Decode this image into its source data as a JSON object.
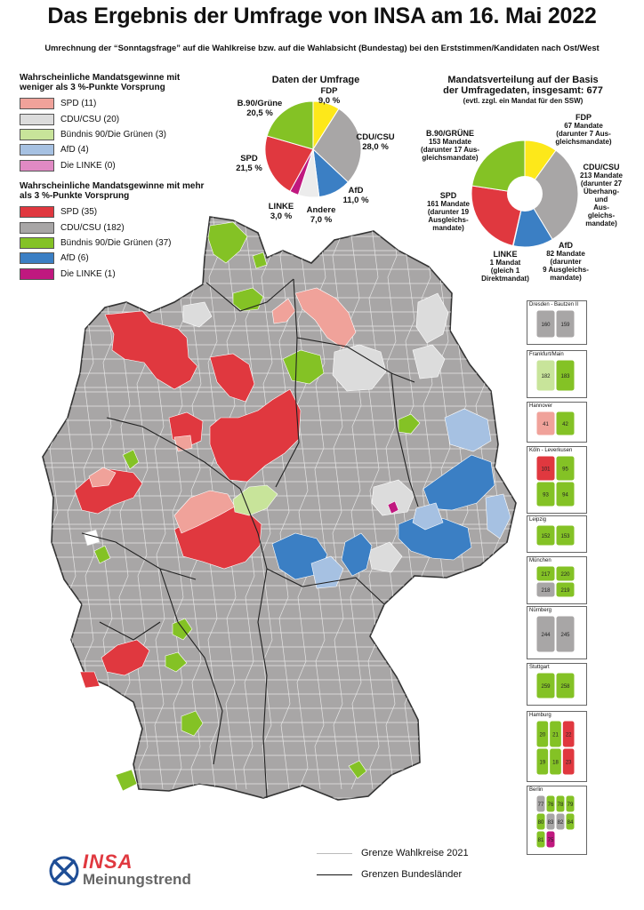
{
  "title": "Das Ergebnis der Umfrage von INSA am 16. Mai 2022",
  "subtitle": "Umrechnung der “Sonntagsfrage” auf die Wahlkreise bzw. auf die Wahlabsicht (Bundestag) bei den Erststimmen/Kandidaten nach Ost/West",
  "colors": {
    "spd": "#e0383f",
    "spd_light": "#f0a29a",
    "cdu": "#a8a6a6",
    "cdu_light": "#dcdcdc",
    "gruene": "#84c225",
    "gruene_light": "#c8e49a",
    "afd": "#3b7fc4",
    "afd_light": "#a6c1e2",
    "linke": "#c0187f",
    "linke_light": "#e08ac4",
    "fdp": "#fde81a",
    "andere": "#ececec",
    "white": "#ffffff"
  },
  "legend_weak": {
    "heading": "Wahrscheinliche Mandatsgewinne mit weniger als 3 %-Punkte Vorsprung",
    "items": [
      {
        "label": "SPD (11)",
        "color": "#f0a29a"
      },
      {
        "label": "CDU/CSU (20)",
        "color": "#dcdcdc"
      },
      {
        "label": "Bündnis 90/Die Grünen (3)",
        "color": "#c8e49a"
      },
      {
        "label": "AfD (4)",
        "color": "#a6c1e2"
      },
      {
        "label": "Die LINKE (0)",
        "color": "#e08ac4"
      }
    ]
  },
  "legend_strong": {
    "heading": "Wahrscheinliche Mandatsgewinne mit mehr als 3 %-Punkte Vorsprung",
    "items": [
      {
        "label": "SPD (35)",
        "color": "#e0383f"
      },
      {
        "label": "CDU/CSU (182)",
        "color": "#a8a6a6"
      },
      {
        "label": "Bündnis 90/Die Grünen (37)",
        "color": "#84c225"
      },
      {
        "label": "AfD (6)",
        "color": "#3b7fc4"
      },
      {
        "label": "Die LINKE (1)",
        "color": "#c0187f"
      }
    ]
  },
  "chart_data": [
    {
      "type": "pie",
      "title": "Daten der Umfrage",
      "categories": [
        "FDP",
        "CDU/CSU",
        "AfD",
        "Andere",
        "LINKE",
        "SPD",
        "B.90/Grüne"
      ],
      "values": [
        9.0,
        28.0,
        11.0,
        7.0,
        3.0,
        21.5,
        20.5
      ],
      "labels": {
        "fdp": [
          "FDP",
          "9,0 %"
        ],
        "cdu": [
          "CDU/CSU",
          "28,0 %"
        ],
        "afd": [
          "AfD",
          "11,0 %"
        ],
        "andere": [
          "Andere",
          "7,0 %"
        ],
        "linke": [
          "LINKE",
          "3,0 %"
        ],
        "spd": [
          "SPD",
          "21,5 %"
        ],
        "gruene": [
          "B.90/Grüne",
          "20,5 %"
        ]
      }
    },
    {
      "type": "pie",
      "title": "Mandatsverteilung auf der Basis der Umfragedaten, insgesamt: 677",
      "title_lines": [
        "Mandatsverteilung auf der Basis",
        "der Umfragedaten, insgesamt: 677",
        "(evtl. zzgl. ein Mandat für den SSW)"
      ],
      "categories": [
        "FDP",
        "CDU/CSU",
        "AfD",
        "LINKE",
        "SPD",
        "B.90/GRÜNE"
      ],
      "values": [
        67,
        213,
        82,
        1,
        161,
        153
      ],
      "labels": {
        "fdp": [
          "FDP",
          "67 Mandate",
          "(darunter 7 Aus-",
          "gleichsmandate)"
        ],
        "cdu": [
          "CDU/CSU",
          "213 Mandate",
          "(darunter 27",
          "Überhang-",
          "und",
          "Aus-",
          "gleichs-",
          "mandate)"
        ],
        "afd": [
          "AfD",
          "82 Mandate",
          "(darunter",
          "9 Ausgleichs-",
          "mandate)"
        ],
        "linke": [
          "LINKE",
          "1 Mandat",
          "(gleich 1",
          "Direktmandat)"
        ],
        "spd": [
          "SPD",
          "161 Mandate",
          "(darunter 19",
          "Ausgleichs-",
          "mandate)"
        ],
        "gruene": [
          "B.90/GRÜNE",
          "153 Mandate",
          "(darunter 17 Aus-",
          "gleichsmandate)"
        ]
      }
    }
  ],
  "insets": [
    {
      "title": "Dresden - Bautzen II",
      "numbers": [
        "160",
        "159"
      ]
    },
    {
      "title": "Frankfurt/Main",
      "numbers": [
        "182",
        "183"
      ]
    },
    {
      "title": "Hannover",
      "numbers": [
        "41",
        "42"
      ]
    },
    {
      "title": "Köln - Leverkusen",
      "numbers": [
        "101",
        "95",
        "93",
        "94"
      ]
    },
    {
      "title": "Leipzig",
      "numbers": [
        "152",
        "153"
      ]
    },
    {
      "title": "München",
      "numbers": [
        "217",
        "220",
        "218",
        "219"
      ]
    },
    {
      "title": "Nürnberg",
      "numbers": [
        "244",
        "245"
      ]
    },
    {
      "title": "Stuttgart",
      "numbers": [
        "259",
        "258"
      ]
    },
    {
      "title": "Hamburg",
      "numbers": [
        "20",
        "21",
        "22",
        "19",
        "18",
        "23"
      ]
    },
    {
      "title": "Berlin",
      "numbers": [
        "77",
        "76",
        "78",
        "79",
        "80",
        "83",
        "82",
        "84",
        "81",
        "75"
      ]
    }
  ],
  "boundaries": {
    "wahlkreise": "Grenze Wahlkreise 2021",
    "bundeslaender": "Grenzen Bundesländer"
  },
  "logo": {
    "brand": "INSA",
    "sub": "Meinungstrend"
  }
}
